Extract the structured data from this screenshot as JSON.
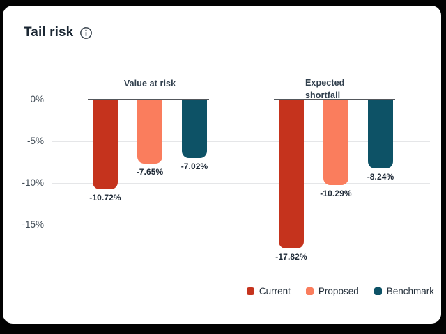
{
  "card": {
    "title": "Tail risk"
  },
  "chart_data": {
    "type": "bar",
    "title": "Tail risk",
    "unit": "%",
    "categories": [
      "Value at risk",
      "Expected shortfall"
    ],
    "series": [
      {
        "name": "Current",
        "color": "#c5331d",
        "values": [
          -10.72,
          -17.82
        ],
        "value_labels": [
          "-10.72%",
          "-17.82%"
        ]
      },
      {
        "name": "Proposed",
        "color": "#fa7d5d",
        "values": [
          -7.65,
          -10.29
        ],
        "value_labels": [
          "-7.65%",
          "-10.29%"
        ]
      },
      {
        "name": "Benchmark",
        "color": "#0d5266",
        "values": [
          -7.02,
          -8.24
        ],
        "value_labels": [
          "-7.02%",
          "-8.24%"
        ]
      }
    ],
    "y_axis": {
      "ticks": [
        {
          "label": "0%",
          "value": 0
        },
        {
          "label": "-5%",
          "value": -5
        },
        {
          "label": "-10%",
          "value": -10
        },
        {
          "label": "-15%",
          "value": -15
        }
      ],
      "range": [
        -18.5,
        0
      ]
    },
    "grid": true,
    "legend": {
      "position": "bottom-right"
    },
    "colors": {
      "gridline": "#e5e6e8",
      "zero_baseline": "#53575c",
      "label_text": "#1f2a37"
    }
  }
}
